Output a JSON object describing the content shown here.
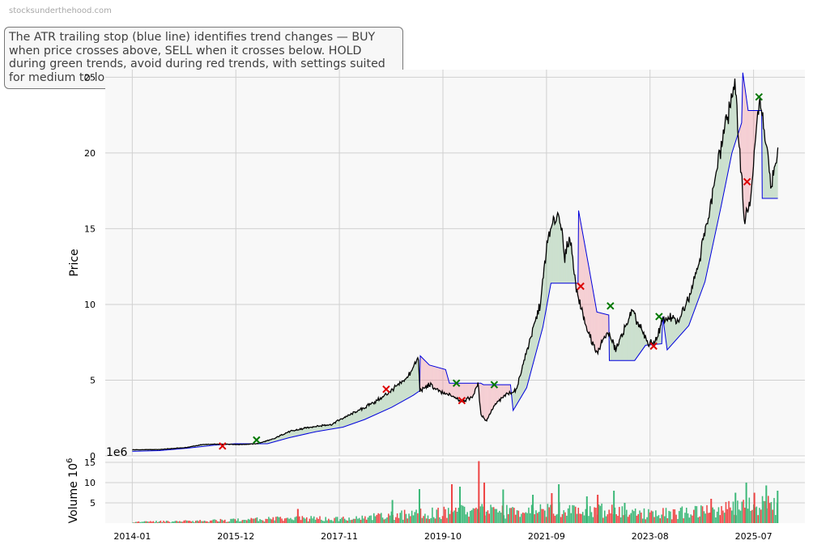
{
  "watermark": "stocksunderthehood.com",
  "description": "The ATR trailing stop (blue line) identifies trend changes — BUY when price crosses above, SELL when it crosses below. HOLD during green trends, avoid during red trends, with settings suited for medium to long-term investors.",
  "colors": {
    "price": "#000000",
    "stop": "#0000dd",
    "bull_fill": "#2e8b3a",
    "bear_fill": "#f08090",
    "buy_marker": "#007700",
    "sell_marker": "#dd0000",
    "vol_up": "#3cb878",
    "vol_down": "#ee4444",
    "panel_bg": "#f8f8f8",
    "grid": "#d0d0d0"
  },
  "chart_data": [
    {
      "type": "line",
      "ylabel": "Price",
      "ylim": [
        0,
        25.5
      ],
      "yticks": [
        0,
        5,
        10,
        15,
        20,
        25
      ],
      "xlim": [
        2013.5,
        2026.45
      ],
      "xticks": [
        {
          "x": 2014.0,
          "label": "2014-01"
        },
        {
          "x": 2015.917,
          "label": "2015-12"
        },
        {
          "x": 2017.833,
          "label": "2017-11"
        },
        {
          "x": 2019.75,
          "label": "2019-10"
        },
        {
          "x": 2021.667,
          "label": "2021-09"
        },
        {
          "x": 2023.583,
          "label": "2023-08"
        },
        {
          "x": 2025.5,
          "label": "2025-07"
        }
      ],
      "grid": true,
      "series": [
        {
          "role": "price",
          "points": [
            [
              2014.0,
              0.4
            ],
            [
              2014.5,
              0.42
            ],
            [
              2015.0,
              0.55
            ],
            [
              2015.3,
              0.75
            ],
            [
              2015.7,
              0.78
            ],
            [
              2016.0,
              0.75
            ],
            [
              2016.3,
              0.8
            ],
            [
              2016.6,
              1.1
            ],
            [
              2016.9,
              1.6
            ],
            [
              2017.3,
              1.9
            ],
            [
              2017.7,
              2.1
            ],
            [
              2017.9,
              2.5
            ],
            [
              2018.2,
              3.0
            ],
            [
              2018.6,
              3.8
            ],
            [
              2018.9,
              4.6
            ],
            [
              2019.1,
              5.2
            ],
            [
              2019.22,
              6.0
            ],
            [
              2019.3,
              6.4
            ],
            [
              2019.32,
              4.3
            ],
            [
              2019.5,
              4.7
            ],
            [
              2019.7,
              4.2
            ],
            [
              2019.9,
              4.0
            ],
            [
              2020.1,
              3.6
            ],
            [
              2020.3,
              3.9
            ],
            [
              2020.4,
              4.8
            ],
            [
              2020.45,
              2.8
            ],
            [
              2020.55,
              2.3
            ],
            [
              2020.7,
              3.3
            ],
            [
              2020.9,
              4.0
            ],
            [
              2021.1,
              4.3
            ],
            [
              2021.2,
              5.6
            ],
            [
              2021.35,
              7.5
            ],
            [
              2021.55,
              10.0
            ],
            [
              2021.7,
              14.5
            ],
            [
              2021.8,
              15.3
            ],
            [
              2021.9,
              16.2
            ],
            [
              2022.0,
              13.0
            ],
            [
              2022.1,
              14.5
            ],
            [
              2022.22,
              11.0
            ],
            [
              2022.4,
              8.5
            ],
            [
              2022.6,
              6.8
            ],
            [
              2022.8,
              8.2
            ],
            [
              2022.95,
              7.0
            ],
            [
              2023.1,
              8.3
            ],
            [
              2023.25,
              9.5
            ],
            [
              2023.4,
              8.5
            ],
            [
              2023.55,
              7.4
            ],
            [
              2023.7,
              7.6
            ],
            [
              2023.8,
              8.9
            ],
            [
              2023.95,
              9.2
            ],
            [
              2024.1,
              8.8
            ],
            [
              2024.3,
              10.5
            ],
            [
              2024.5,
              13.0
            ],
            [
              2024.7,
              16.5
            ],
            [
              2024.9,
              20.5
            ],
            [
              2025.05,
              23.0
            ],
            [
              2025.15,
              24.5
            ],
            [
              2025.25,
              20.0
            ],
            [
              2025.33,
              15.5
            ],
            [
              2025.45,
              17.0
            ],
            [
              2025.6,
              23.7
            ],
            [
              2025.75,
              20.0
            ],
            [
              2025.82,
              18.0
            ],
            [
              2025.9,
              19.0
            ],
            [
              2025.95,
              20.0
            ]
          ]
        },
        {
          "role": "trailing_stop",
          "points": [
            [
              2014.0,
              0.3
            ],
            [
              2014.5,
              0.35
            ],
            [
              2015.0,
              0.5
            ],
            [
              2015.5,
              0.7
            ],
            [
              2015.9,
              0.8
            ],
            [
              2016.1,
              0.8
            ],
            [
              2016.5,
              0.8
            ],
            [
              2016.9,
              1.2
            ],
            [
              2017.4,
              1.6
            ],
            [
              2017.9,
              1.9
            ],
            [
              2018.3,
              2.4
            ],
            [
              2018.8,
              3.2
            ],
            [
              2019.2,
              4.0
            ],
            [
              2019.32,
              4.3
            ],
            [
              2019.33,
              6.6
            ],
            [
              2019.5,
              6.0
            ],
            [
              2019.8,
              5.7
            ],
            [
              2019.87,
              4.8
            ],
            [
              2020.45,
              4.8
            ],
            [
              2020.5,
              4.7
            ],
            [
              2021.0,
              4.7
            ],
            [
              2021.05,
              3.0
            ],
            [
              2021.3,
              4.5
            ],
            [
              2021.45,
              6.5
            ],
            [
              2021.6,
              8.5
            ],
            [
              2021.75,
              11.4
            ],
            [
              2022.25,
              11.4
            ],
            [
              2022.26,
              16.2
            ],
            [
              2022.45,
              12.5
            ],
            [
              2022.6,
              9.5
            ],
            [
              2022.82,
              9.3
            ],
            [
              2022.83,
              6.3
            ],
            [
              2023.3,
              6.3
            ],
            [
              2023.5,
              7.3
            ],
            [
              2023.8,
              7.4
            ],
            [
              2023.82,
              9.2
            ],
            [
              2023.9,
              7.0
            ],
            [
              2024.3,
              8.6
            ],
            [
              2024.6,
              11.5
            ],
            [
              2024.9,
              16.5
            ],
            [
              2025.1,
              20.0
            ],
            [
              2025.28,
              22.0
            ],
            [
              2025.3,
              25.3
            ],
            [
              2025.4,
              22.8
            ],
            [
              2025.65,
              22.8
            ],
            [
              2025.66,
              17.0
            ],
            [
              2025.95,
              17.0
            ]
          ]
        }
      ],
      "signals": [
        {
          "type": "sell",
          "x": 2015.67,
          "y": 0.65
        },
        {
          "type": "buy",
          "x": 2016.3,
          "y": 1.05
        },
        {
          "type": "sell",
          "x": 2018.7,
          "y": 4.4
        },
        {
          "type": "buy",
          "x": 2020.0,
          "y": 4.8
        },
        {
          "type": "sell",
          "x": 2020.1,
          "y": 3.65
        },
        {
          "type": "buy",
          "x": 2020.7,
          "y": 4.7
        },
        {
          "type": "sell",
          "x": 2022.3,
          "y": 11.2
        },
        {
          "type": "buy",
          "x": 2022.85,
          "y": 9.9
        },
        {
          "type": "sell",
          "x": 2023.65,
          "y": 7.25
        },
        {
          "type": "buy",
          "x": 2023.75,
          "y": 9.2
        },
        {
          "type": "sell",
          "x": 2025.38,
          "y": 18.1
        },
        {
          "type": "buy",
          "x": 2025.6,
          "y": 23.7
        }
      ]
    },
    {
      "type": "bar",
      "ylabel": "Volume",
      "ylabel_unit": "10^6",
      "offset_label": "1e6",
      "ylim": [
        0,
        16
      ],
      "yticks": [
        5,
        10,
        15
      ],
      "xlim": [
        2013.5,
        2026.45
      ],
      "grid": true,
      "volume_profile": [
        [
          2014.0,
          0.3
        ],
        [
          2015.0,
          0.5
        ],
        [
          2016.0,
          0.8
        ],
        [
          2016.6,
          1.1
        ],
        [
          2017.5,
          1.2
        ],
        [
          2018.5,
          1.7
        ],
        [
          2019.0,
          2.3
        ],
        [
          2019.8,
          2.8
        ],
        [
          2020.4,
          3.2
        ],
        [
          2021.2,
          3.0
        ],
        [
          2021.8,
          3.6
        ],
        [
          2022.5,
          3.4
        ],
        [
          2023.3,
          2.7
        ],
        [
          2024.0,
          2.6
        ],
        [
          2024.6,
          3.2
        ],
        [
          2025.0,
          3.8
        ],
        [
          2025.5,
          4.5
        ],
        [
          2025.95,
          4.8
        ]
      ],
      "volume_spikes": [
        {
          "x": 2017.05,
          "value": 3.5
        },
        {
          "x": 2018.8,
          "value": 5.7
        },
        {
          "x": 2019.3,
          "value": 8.4
        },
        {
          "x": 2019.9,
          "value": 9.6
        },
        {
          "x": 2020.05,
          "value": 9.0
        },
        {
          "x": 2020.4,
          "value": 15.3
        },
        {
          "x": 2020.5,
          "value": 10.0
        },
        {
          "x": 2020.85,
          "value": 8.3
        },
        {
          "x": 2021.4,
          "value": 7.0
        },
        {
          "x": 2021.75,
          "value": 7.4
        },
        {
          "x": 2021.88,
          "value": 9.6
        },
        {
          "x": 2022.4,
          "value": 6.6
        },
        {
          "x": 2022.6,
          "value": 7.0
        },
        {
          "x": 2022.9,
          "value": 8.0
        },
        {
          "x": 2023.1,
          "value": 5.0
        },
        {
          "x": 2024.7,
          "value": 6.0
        },
        {
          "x": 2025.15,
          "value": 7.5
        },
        {
          "x": 2025.35,
          "value": 10.0
        },
        {
          "x": 2025.5,
          "value": 7.5
        },
        {
          "x": 2025.72,
          "value": 9.3
        },
        {
          "x": 2025.93,
          "value": 8.0
        }
      ]
    }
  ]
}
